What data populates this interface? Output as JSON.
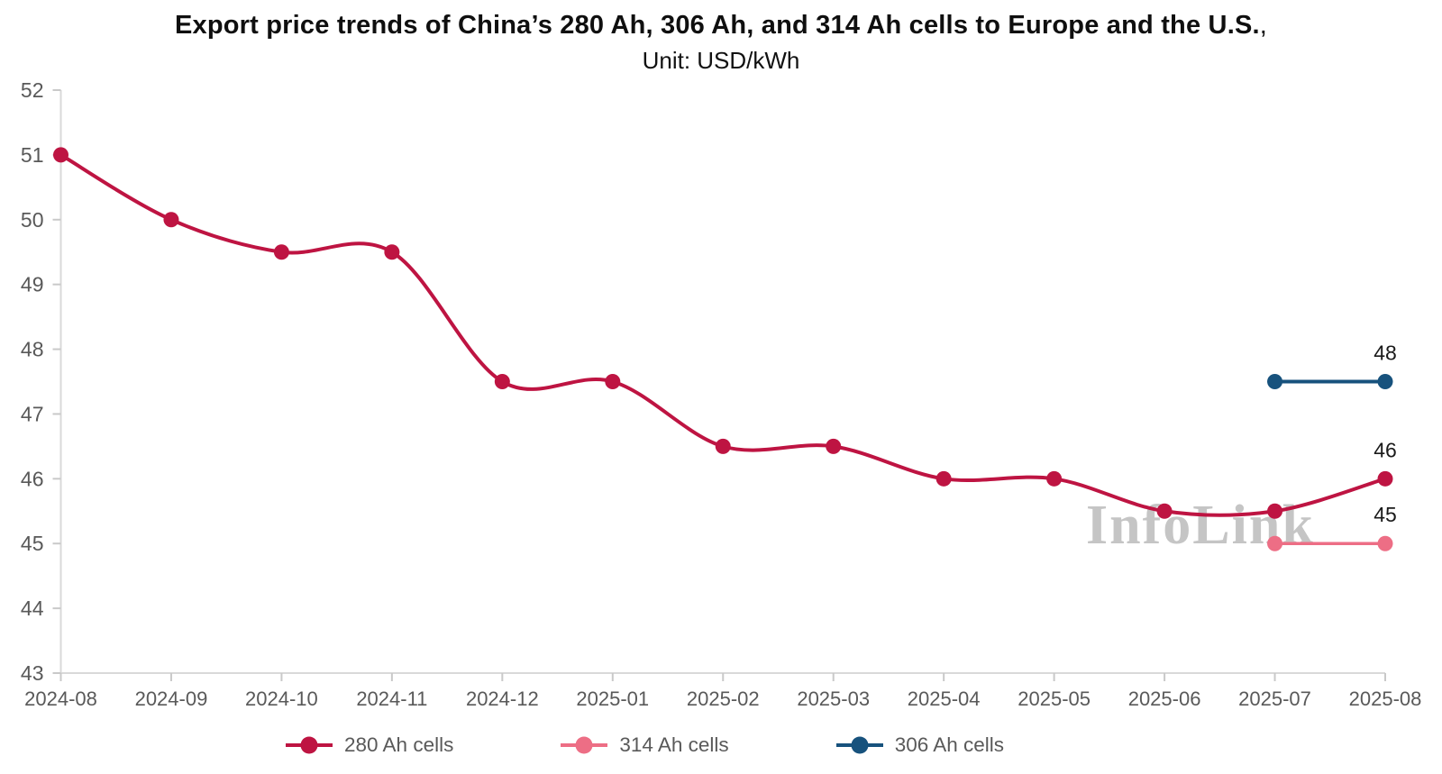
{
  "header": {
    "title_main": "Export price trends of China’s 280 Ah, 306 Ah, and 314 Ah cells to Europe and the U.S.",
    "title_suffix": ",",
    "subtitle": "Unit: USD/kWh"
  },
  "watermark": "InfoLink",
  "colors": {
    "series_280": "#BE1442",
    "series_314": "#ED6E85",
    "series_306": "#17527D",
    "axis_line": "#D9D9D9",
    "tick_mark": "#C9C9C9",
    "axis_text": "#595959",
    "data_label_text": "#1A1A1A",
    "watermark_text": "#C5C5C5",
    "title_text": "#0F0F0F"
  },
  "chart_data": {
    "type": "line",
    "title": "Export price trends of China’s 280 Ah, 306 Ah, and 314 Ah cells to Europe and the U.S.",
    "subtitle": "Unit: USD/kWh",
    "ylabel": "USD/kWh",
    "xlabel": "",
    "grid": false,
    "legend_position": "bottom",
    "ylim": [
      43,
      52
    ],
    "ytick_step": 1,
    "yticks": [
      43,
      44,
      45,
      46,
      47,
      48,
      49,
      50,
      51,
      52
    ],
    "x_categories": [
      "2024-08",
      "2024-09",
      "2024-10",
      "2024-11",
      "2024-12",
      "2025-01",
      "2025-02",
      "2025-03",
      "2025-04",
      "2025-05",
      "2025-06",
      "2025-07",
      "2025-08"
    ],
    "series": [
      {
        "name": "280 Ah cells",
        "color": "#BE1442",
        "smooth": true,
        "line_width": 4,
        "point_radius": 8.5,
        "values": [
          51,
          50,
          49.5,
          49.5,
          47.5,
          47.5,
          46.5,
          46.5,
          46,
          46,
          45.5,
          45.5,
          46
        ],
        "end_label": "46"
      },
      {
        "name": "314 Ah cells",
        "color": "#ED6E85",
        "smooth": false,
        "line_width": 3.5,
        "point_radius": 8.5,
        "values": [
          null,
          null,
          null,
          null,
          null,
          null,
          null,
          null,
          null,
          null,
          null,
          45,
          45
        ],
        "end_label": "45"
      },
      {
        "name": "306 Ah cells",
        "color": "#17527D",
        "smooth": false,
        "line_width": 4,
        "point_radius": 8.5,
        "values": [
          null,
          null,
          null,
          null,
          null,
          null,
          null,
          null,
          null,
          null,
          null,
          47.5,
          47.5
        ],
        "end_label": "48"
      }
    ]
  },
  "legend": {
    "items": [
      {
        "label": "280 Ah cells",
        "color": "#BE1442"
      },
      {
        "label": "314 Ah cells",
        "color": "#ED6E85"
      },
      {
        "label": "306 Ah cells",
        "color": "#17527D"
      }
    ]
  }
}
